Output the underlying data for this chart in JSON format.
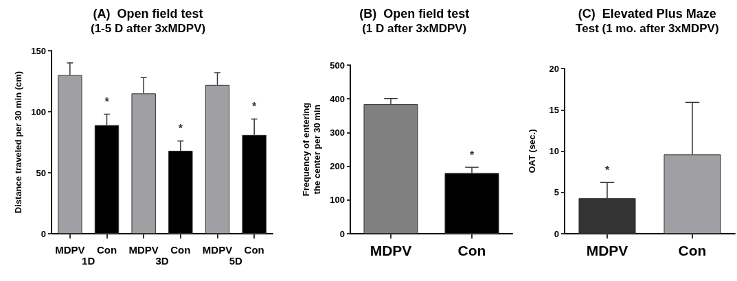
{
  "chart_data": [
    {
      "type": "bar",
      "title": "(A)  Open field test",
      "subtitle": "(1-5 D after 3xMDPV)",
      "ylabel": "Distance traveled per 30 min (cm)",
      "categories": [
        "MDPV",
        "Con",
        "MDPV",
        "Con",
        "MDPV",
        "Con"
      ],
      "values": [
        130,
        89,
        115,
        68,
        122,
        81
      ],
      "errors": [
        10,
        9,
        13,
        8,
        10,
        13
      ],
      "value_labels": [
        null,
        "*",
        null,
        "*",
        null,
        "*"
      ],
      "colors": [
        "#a0a0a4",
        "#000000",
        "#a0a0a4",
        "#000000",
        "#a0a0a4",
        "#000000"
      ],
      "ylim": [
        0,
        150
      ],
      "yticks": [
        0,
        50,
        100,
        150
      ],
      "annotations": [
        "1D",
        "3D",
        "5D"
      ]
    },
    {
      "type": "bar",
      "title": "(B)  Open field test",
      "subtitle": "(1 D after 3xMDPV)",
      "ylabel": "Frequency of entering the center per 30 min",
      "categories": [
        "MDPV",
        "Con"
      ],
      "values": [
        384,
        180
      ],
      "errors": [
        17,
        17
      ],
      "value_labels": [
        null,
        "*"
      ],
      "colors": [
        "#808080",
        "#000000"
      ],
      "ylim": [
        0,
        500
      ],
      "yticks": [
        0,
        100,
        200,
        300,
        400,
        500
      ]
    },
    {
      "type": "bar",
      "title": "(C)  Elevated Plus Maze",
      "subtitle": "Test (1 mo. after 3xMDPV)",
      "ylabel": "OAT (sec.)",
      "categories": [
        "MDPV",
        "Con"
      ],
      "values": [
        4.3,
        9.6
      ],
      "errors": [
        1.9,
        6.3
      ],
      "value_labels": [
        "*",
        null
      ],
      "colors": [
        "#333333",
        "#a0a0a4"
      ],
      "ylim": [
        0,
        20
      ],
      "yticks": [
        0,
        5,
        10,
        15,
        20
      ]
    }
  ]
}
